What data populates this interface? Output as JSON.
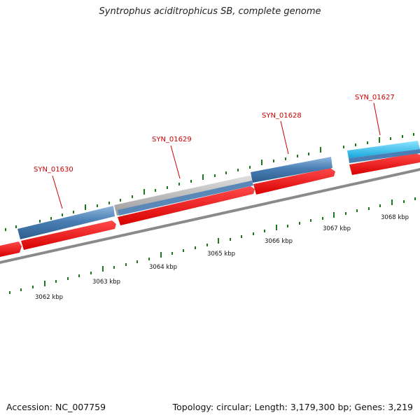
{
  "title": "Syntrophus aciditrophicus SB, complete genome",
  "footer": {
    "accession": "Accession: NC_007759",
    "summary": "Topology: circular; Length: 3,179,300 bp; Genes: 3,219"
  },
  "chart_data": {
    "type": "genome-map",
    "genes": [
      {
        "label": "SYN_01630"
      },
      {
        "label": "SYN_01629"
      },
      {
        "label": "SYN_01628"
      },
      {
        "label": "SYN_01627"
      }
    ],
    "scale_labels": [
      "3062 kbp",
      "3063 kbp",
      "3064 kbp",
      "3065 kbp",
      "3066 kbp",
      "3067 kbp",
      "3068 kbp"
    ]
  },
  "colors": {
    "cds_red": "#ee1111",
    "gene_blue": "#4a7fb5",
    "gene_gray": "#a9a9a9",
    "gene_cyan": "#22bbee",
    "backbone": "#8a8a8a",
    "tick_green": "#1a7a1a",
    "label_red": "#cc0000"
  }
}
